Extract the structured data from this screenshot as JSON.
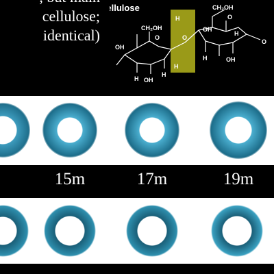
{
  "caption_lines": [
    "",
    ", but main",
    "cellulose;",
    "identical)"
  ],
  "molecule": {
    "title": "Cellulose",
    "highlight_color": "#9a9a18",
    "atoms": {
      "ch2oh": "CH₂OH",
      "h": "H",
      "o": "O",
      "oh": "OH",
      "c": "C"
    }
  },
  "time_labels": [
    "",
    "15m",
    "17m",
    "19m"
  ],
  "colors": {
    "background": "#000000",
    "band": "#ffffff",
    "stain_top": "#2f8fb0",
    "stain_bottom": "#1f6f8c"
  }
}
